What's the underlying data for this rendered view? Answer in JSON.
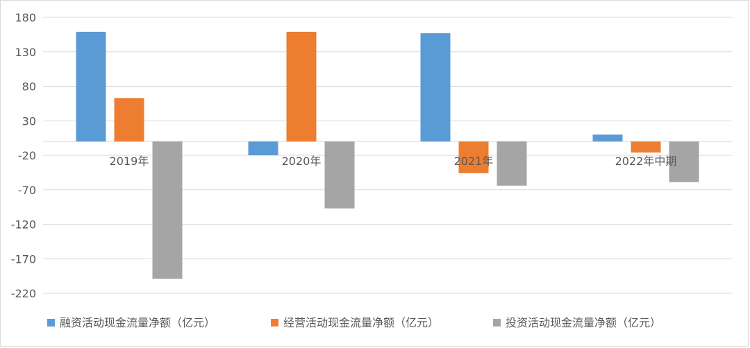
{
  "chart_data": {
    "type": "bar",
    "categories": [
      "2019年",
      "2020年",
      "2021年",
      "2022年中期"
    ],
    "series": [
      {
        "name": "融资活动现金流量净额（亿元）",
        "color": "#5B9BD5",
        "values": [
          159,
          -20,
          157,
          10
        ]
      },
      {
        "name": "经营活动现金流量净额（亿元）",
        "color": "#ED7D31",
        "values": [
          63,
          159,
          -46,
          -16
        ]
      },
      {
        "name": "投资活动现金流量净额（亿元）",
        "color": "#A5A5A5",
        "values": [
          -199,
          -97,
          -64,
          -59
        ]
      }
    ],
    "yticks": [
      180,
      130,
      80,
      30,
      -20,
      -70,
      -120,
      -170,
      -220
    ],
    "ylim": [
      -220,
      180
    ],
    "grid": true,
    "legend": "bottom"
  }
}
